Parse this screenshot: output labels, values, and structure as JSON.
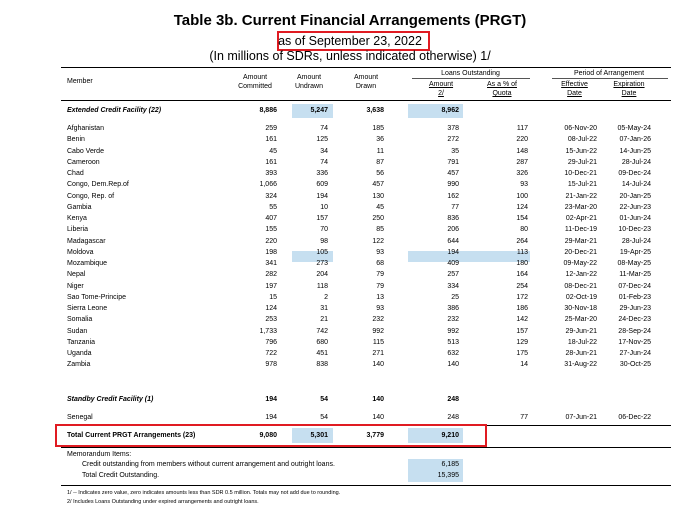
{
  "title": "Table 3b. Current Financial Arrangements (PRGT)",
  "as_of": "as of September 23, 2022",
  "subtitle": "(In millions of SDRs, unless indicated otherwise) 1/",
  "headers": {
    "member": "Member",
    "committed": [
      "Amount",
      "Committed"
    ],
    "undrawn": [
      "Amount",
      "Undrawn"
    ],
    "drawn": [
      "Amount",
      "Drawn"
    ],
    "loans_outstanding": "Loans Outstanding",
    "amount2": [
      "Amount",
      "2/"
    ],
    "pct_quota": [
      "As a % of",
      "Quota"
    ],
    "period": "Period of Arrangement",
    "effective": [
      "Effective",
      "Date"
    ],
    "expiration": [
      "Expiration",
      "Date"
    ]
  },
  "ecf": {
    "label": "Extended Credit Facility  (22)",
    "committed": "8,886",
    "undrawn": "5,247",
    "drawn": "3,638",
    "amount": "8,962",
    "rows": [
      [
        "Afghanistan",
        "259",
        "74",
        "185",
        "378",
        "117",
        "06-Nov-20",
        "05-May-24"
      ],
      [
        "Benin",
        "161",
        "125",
        "36",
        "272",
        "220",
        "08-Jul-22",
        "07-Jan-26"
      ],
      [
        "Cabo Verde",
        "45",
        "34",
        "11",
        "35",
        "148",
        "15-Jun-22",
        "14-Jun-25"
      ],
      [
        "Cameroon",
        "161",
        "74",
        "87",
        "791",
        "287",
        "29-Jul-21",
        "28-Jul-24"
      ],
      [
        "Chad",
        "393",
        "336",
        "56",
        "457",
        "326",
        "10-Dec-21",
        "09-Dec-24"
      ],
      [
        "Congo, Dem.Rep.of",
        "1,066",
        "609",
        "457",
        "990",
        "93",
        "15-Jul-21",
        "14-Jul-24"
      ],
      [
        "Congo, Rep. of",
        "324",
        "194",
        "130",
        "162",
        "100",
        "21-Jan-22",
        "20-Jan-25"
      ],
      [
        "Gambia",
        "55",
        "10",
        "45",
        "77",
        "124",
        "23-Mar-20",
        "22-Jun-23"
      ],
      [
        "Kenya",
        "407",
        "157",
        "250",
        "836",
        "154",
        "02-Apr-21",
        "01-Jun-24"
      ],
      [
        "Liberia",
        "155",
        "70",
        "85",
        "206",
        "80",
        "11-Dec-19",
        "10-Dec-23"
      ],
      [
        "Madagascar",
        "220",
        "98",
        "122",
        "644",
        "264",
        "29-Mar-21",
        "28-Jul-24"
      ],
      [
        "Moldova",
        "198",
        "105",
        "93",
        "194",
        "113",
        "20-Dec-21",
        "19-Apr-25"
      ],
      [
        "Mozambique",
        "341",
        "273",
        "68",
        "409",
        "180",
        "09-May-22",
        "08-May-25"
      ],
      [
        "Nepal",
        "282",
        "204",
        "79",
        "257",
        "164",
        "12-Jan-22",
        "11-Mar-25"
      ],
      [
        "Niger",
        "197",
        "118",
        "79",
        "334",
        "254",
        "08-Dec-21",
        "07-Dec-24"
      ],
      [
        "Sao Tome-Principe",
        "15",
        "2",
        "13",
        "25",
        "172",
        "02-Oct-19",
        "01-Feb-23"
      ],
      [
        "Sierra Leone",
        "124",
        "31",
        "93",
        "386",
        "186",
        "30-Nov-18",
        "29-Jun-23"
      ],
      [
        "Somalia",
        "253",
        "21",
        "232",
        "232",
        "142",
        "25-Mar-20",
        "24-Dec-23"
      ],
      [
        "Sudan",
        "1,733",
        "742",
        "992",
        "992",
        "157",
        "29-Jun-21",
        "28-Sep-24"
      ],
      [
        "Tanzania",
        "796",
        "680",
        "115",
        "513",
        "129",
        "18-Jul-22",
        "17-Nov-25"
      ],
      [
        "Uganda",
        "722",
        "451",
        "271",
        "632",
        "175",
        "28-Jun-21",
        "27-Jun-24"
      ],
      [
        "Zambia",
        "978",
        "838",
        "140",
        "140",
        "14",
        "31-Aug-22",
        "30-Oct-25"
      ]
    ]
  },
  "scf": {
    "label": "Standby Credit Facility  (1)",
    "committed": "194",
    "undrawn": "54",
    "drawn": "140",
    "amount": "248",
    "rows": [
      [
        "Senegal",
        "194",
        "54",
        "140",
        "248",
        "77",
        "07-Jun-21",
        "06-Dec-22"
      ]
    ]
  },
  "total": {
    "label": "Total Current PRGT Arrangements (23)",
    "committed": "9,080",
    "undrawn": "5,301",
    "drawn": "3,779",
    "amount": "9,210"
  },
  "memo": {
    "title": "Memorandum Items:",
    "line1_label": "Credit outstanding from members without current arrangement and outright loans.",
    "line1_value": "6,185",
    "line2_label": "Total Credit Outstanding.",
    "line2_value": "15,395"
  },
  "footnotes": [
    "1/ -- Indicates zero value, zero indicates amounts less than SDR 0.5 million. Totals may not add due to rounding.",
    "2/ Includes Loans Outstanding under expired arrangements and outright loans."
  ],
  "colors": {
    "highlight_box": "#e01b22",
    "shade": "#c6dff0"
  }
}
